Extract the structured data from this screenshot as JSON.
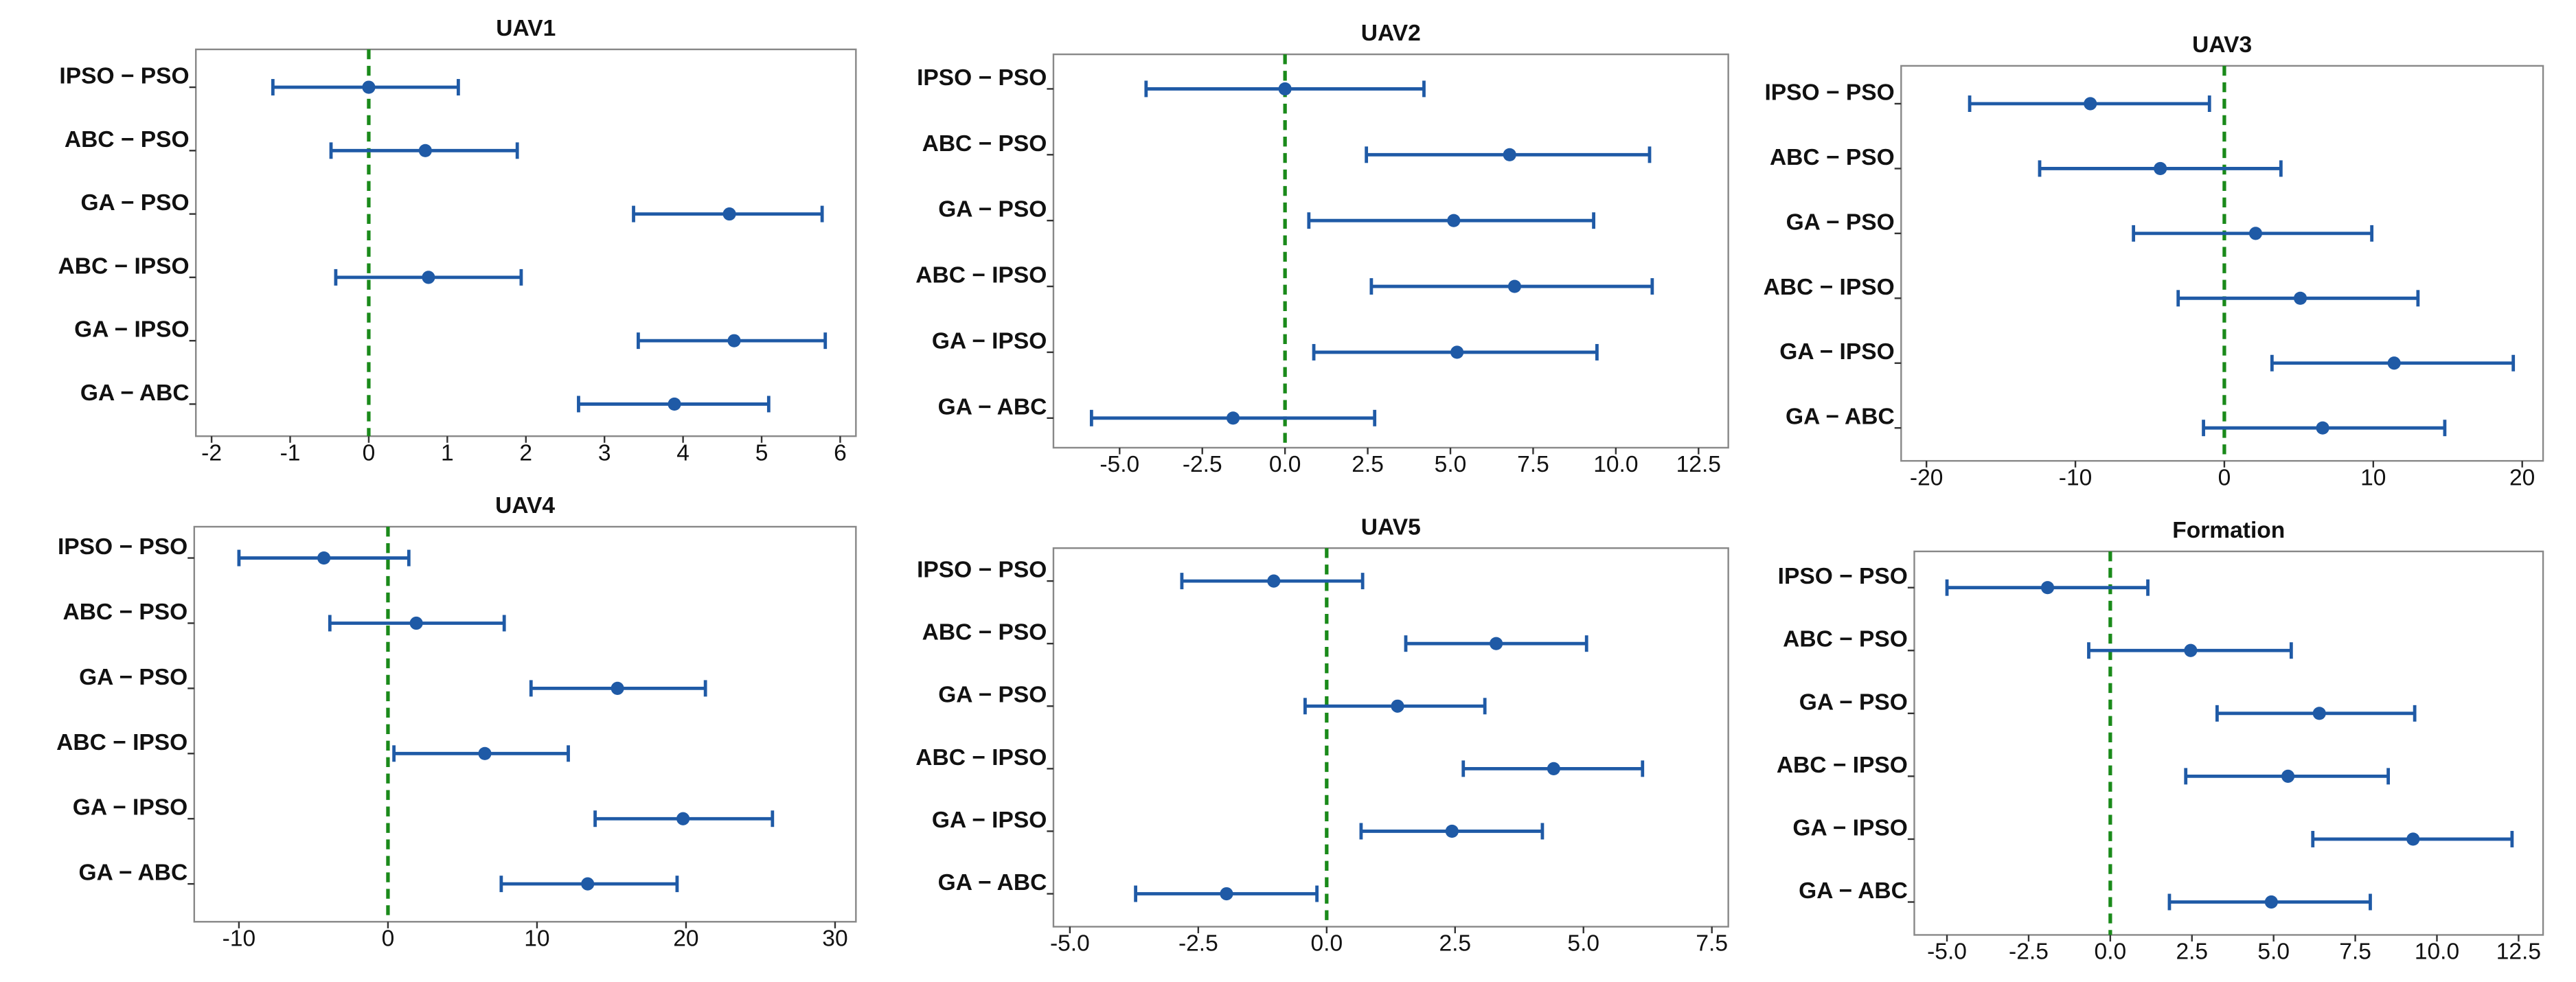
{
  "chart_data": [
    {
      "type": "interval",
      "title": "UAV1",
      "categories": [
        "IPSO − PSO",
        "ABC − PSO",
        "GA − PSO",
        "ABC − IPSO",
        "GA − IPSO",
        "GA − ABC"
      ],
      "values": [
        0,
        0.72,
        4.59,
        0.76,
        4.65,
        3.89
      ],
      "lower": [
        -1.22,
        -0.48,
        3.37,
        -0.42,
        3.43,
        2.67
      ],
      "upper": [
        1.14,
        1.89,
        5.77,
        1.94,
        5.81,
        5.09
      ],
      "color": "#1f5aa6",
      "refline": 0,
      "xlim": [
        -2.2,
        6.2
      ],
      "xticks": [
        -2,
        -1,
        0,
        1,
        2,
        3,
        4,
        5,
        6
      ]
    },
    {
      "type": "interval",
      "title": "UAV2",
      "categories": [
        "IPSO − PSO",
        "ABC − PSO",
        "GA − PSO",
        "ABC − IPSO",
        "GA − IPSO",
        "GA − ABC"
      ],
      "values": [
        0,
        6.79,
        5.1,
        6.94,
        5.2,
        -1.57
      ],
      "lower": [
        -4.2,
        2.46,
        0.72,
        2.61,
        0.87,
        -5.85
      ],
      "upper": [
        4.2,
        11.02,
        9.33,
        11.1,
        9.43,
        2.71
      ],
      "color": "#1f5aa6",
      "refline": 0,
      "xlim": [
        -7,
        13.4
      ],
      "xticks": [
        {
          "value": -5,
          "label": "-5.0"
        },
        {
          "value": -2.5,
          "label": "-2.5"
        },
        {
          "value": 0,
          "label": "0.0"
        },
        {
          "value": 2.5,
          "label": "2.5"
        },
        {
          "value": 5,
          "label": "5.0"
        },
        {
          "value": 7.5,
          "label": "7.5"
        },
        {
          "value": 10,
          "label": "10.0"
        },
        {
          "value": 12.5,
          "label": "12.5"
        }
      ]
    },
    {
      "type": "interval",
      "title": "UAV3",
      "categories": [
        "IPSO − PSO",
        "ABC − PSO",
        "GA − PSO",
        "ABC − IPSO",
        "GA − IPSO",
        "GA − ABC"
      ],
      "values": [
        -9.0,
        -4.3,
        2.1,
        5.1,
        11.4,
        6.6
      ],
      "lower": [
        -17.1,
        -12.4,
        -6.1,
        -3.1,
        3.2,
        -1.4
      ],
      "upper": [
        -1.0,
        3.8,
        9.9,
        13.0,
        19.4,
        14.8
      ],
      "color": "#1f5aa6",
      "refline": 0,
      "xlim": [
        -21.7,
        21.4
      ],
      "xticks": [
        -20,
        -10,
        0,
        10,
        20
      ]
    },
    {
      "type": "interval",
      "title": "UAV4",
      "categories": [
        "IPSO − PSO",
        "ABC − PSO",
        "GA − PSO",
        "ABC − IPSO",
        "GA − IPSO",
        "GA − ABC"
      ],
      "values": [
        -4.3,
        1.9,
        15.4,
        6.5,
        19.8,
        13.4
      ],
      "lower": [
        -10.0,
        -3.9,
        9.6,
        0.4,
        13.9,
        7.6
      ],
      "upper": [
        1.4,
        7.8,
        21.3,
        12.1,
        25.8,
        19.4
      ],
      "color": "#1f5aa6",
      "refline": 0,
      "xlim": [
        -13,
        31.4
      ],
      "xticks": [
        -10,
        0,
        10,
        20,
        30
      ]
    },
    {
      "type": "interval",
      "title": "UAV5",
      "categories": [
        "IPSO − PSO",
        "ABC − PSO",
        "GA − PSO",
        "ABC − IPSO",
        "GA − IPSO",
        "GA − ABC"
      ],
      "values": [
        -1.03,
        3.3,
        1.38,
        4.42,
        2.44,
        -1.95
      ],
      "lower": [
        -2.82,
        1.54,
        -0.42,
        2.66,
        0.67,
        -3.72
      ],
      "upper": [
        0.7,
        5.06,
        3.08,
        6.15,
        4.2,
        -0.19
      ],
      "color": "#1f5aa6",
      "refline": 0,
      "xlim": [
        -5.32,
        7.82
      ],
      "xticks": [
        {
          "value": -5,
          "label": "-5.0"
        },
        {
          "value": -2.5,
          "label": "-2.5"
        },
        {
          "value": 0,
          "label": "0.0"
        },
        {
          "value": 2.5,
          "label": "2.5"
        },
        {
          "value": 5,
          "label": "5.0"
        },
        {
          "value": 7.5,
          "label": "7.5"
        }
      ]
    },
    {
      "type": "interval",
      "title": "Formation",
      "categories": [
        "IPSO − PSO",
        "ABC − PSO",
        "GA − PSO",
        "ABC − IPSO",
        "GA − IPSO",
        "GA − ABC"
      ],
      "values": [
        -1.92,
        2.46,
        6.4,
        5.44,
        9.27,
        4.93
      ],
      "lower": [
        -5.0,
        -0.66,
        3.27,
        2.31,
        6.2,
        1.81
      ],
      "upper": [
        1.15,
        5.54,
        9.32,
        8.51,
        12.3,
        7.96
      ],
      "color": "#1f5aa6",
      "refline": 0,
      "xlim": [
        -6.0,
        13.25
      ],
      "xticks": [
        {
          "value": -5,
          "label": "-5.0"
        },
        {
          "value": -2.5,
          "label": "-2.5"
        },
        {
          "value": 0,
          "label": "0.0"
        },
        {
          "value": 2.5,
          "label": "2.5"
        },
        {
          "value": 5,
          "label": "5.0"
        },
        {
          "value": 7.5,
          "label": "7.5"
        },
        {
          "value": 10,
          "label": "10.0"
        },
        {
          "value": 12.5,
          "label": "12.5"
        }
      ]
    }
  ]
}
